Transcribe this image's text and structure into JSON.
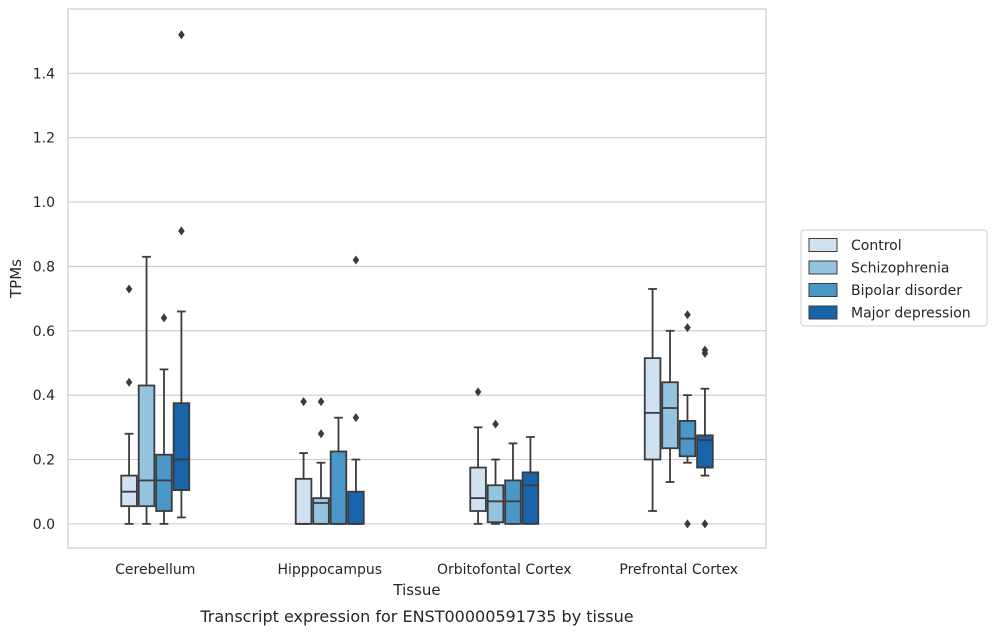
{
  "caption": "Transcript expression for ENST00000591735 by tissue",
  "chart_data": {
    "type": "box",
    "xlabel": "Tissue",
    "ylabel": "TPMs",
    "ylim": [
      -0.075,
      1.6
    ],
    "yticks": [
      0.0,
      0.2,
      0.4,
      0.6,
      0.8,
      1.0,
      1.2,
      1.4
    ],
    "ytick_labels": [
      "0.0",
      "0.2",
      "0.4",
      "0.6",
      "0.8",
      "1.0",
      "1.2",
      "1.4"
    ],
    "grid": "horizontal",
    "legend_position": "right",
    "categories": [
      "Cerebellum",
      "Hipppocampus",
      "Orbitofontal Cortex",
      "Prefrontal Cortex"
    ],
    "series": [
      {
        "name": "Control",
        "color": "#d0e1f2",
        "boxes": [
          {
            "whislo": 0.0,
            "q1": 0.055,
            "median": 0.1,
            "q3": 0.15,
            "whishi": 0.28,
            "fliers": [
              0.44,
              0.73
            ]
          },
          {
            "whislo": 0.0,
            "q1": 0.0,
            "median": 0.0,
            "q3": 0.14,
            "whishi": 0.22,
            "fliers": [
              0.38
            ]
          },
          {
            "whislo": 0.0,
            "q1": 0.04,
            "median": 0.08,
            "q3": 0.175,
            "whishi": 0.3,
            "fliers": [
              0.41
            ]
          },
          {
            "whislo": 0.04,
            "q1": 0.2,
            "median": 0.345,
            "q3": 0.515,
            "whishi": 0.73,
            "fliers": []
          }
        ]
      },
      {
        "name": "Schizophrenia",
        "color": "#94c4df",
        "boxes": [
          {
            "whislo": 0.0,
            "q1": 0.055,
            "median": 0.135,
            "q3": 0.43,
            "whishi": 0.83,
            "fliers": []
          },
          {
            "whislo": 0.0,
            "q1": 0.0,
            "median": 0.065,
            "q3": 0.08,
            "whishi": 0.19,
            "fliers": [
              0.28,
              0.38
            ]
          },
          {
            "whislo": 0.0,
            "q1": 0.005,
            "median": 0.07,
            "q3": 0.12,
            "whishi": 0.2,
            "fliers": [
              0.31
            ]
          },
          {
            "whislo": 0.13,
            "q1": 0.235,
            "median": 0.36,
            "q3": 0.44,
            "whishi": 0.6,
            "fliers": []
          }
        ]
      },
      {
        "name": "Bipolar disorder",
        "color": "#4a98c9",
        "boxes": [
          {
            "whislo": 0.0,
            "q1": 0.04,
            "median": 0.135,
            "q3": 0.215,
            "whishi": 0.48,
            "fliers": [
              0.64
            ]
          },
          {
            "whislo": 0.0,
            "q1": 0.0,
            "median": 0.0,
            "q3": 0.225,
            "whishi": 0.33,
            "fliers": []
          },
          {
            "whislo": 0.0,
            "q1": 0.0,
            "median": 0.07,
            "q3": 0.135,
            "whishi": 0.25,
            "fliers": []
          },
          {
            "whislo": 0.19,
            "q1": 0.21,
            "median": 0.265,
            "q3": 0.32,
            "whishi": 0.4,
            "fliers": [
              0.0,
              0.61,
              0.65
            ]
          }
        ]
      },
      {
        "name": "Major depression",
        "color": "#1764ab",
        "boxes": [
          {
            "whislo": 0.02,
            "q1": 0.105,
            "median": 0.2,
            "q3": 0.375,
            "whishi": 0.66,
            "fliers": [
              0.91,
              1.52
            ]
          },
          {
            "whislo": 0.0,
            "q1": 0.0,
            "median": 0.0,
            "q3": 0.1,
            "whishi": 0.2,
            "fliers": [
              0.33,
              0.82
            ]
          },
          {
            "whislo": 0.0,
            "q1": 0.0,
            "median": 0.12,
            "q3": 0.16,
            "whishi": 0.27,
            "fliers": []
          },
          {
            "whislo": 0.15,
            "q1": 0.175,
            "median": 0.26,
            "q3": 0.275,
            "whishi": 0.42,
            "fliers": [
              0.0,
              0.53,
              0.54
            ]
          }
        ]
      }
    ]
  }
}
